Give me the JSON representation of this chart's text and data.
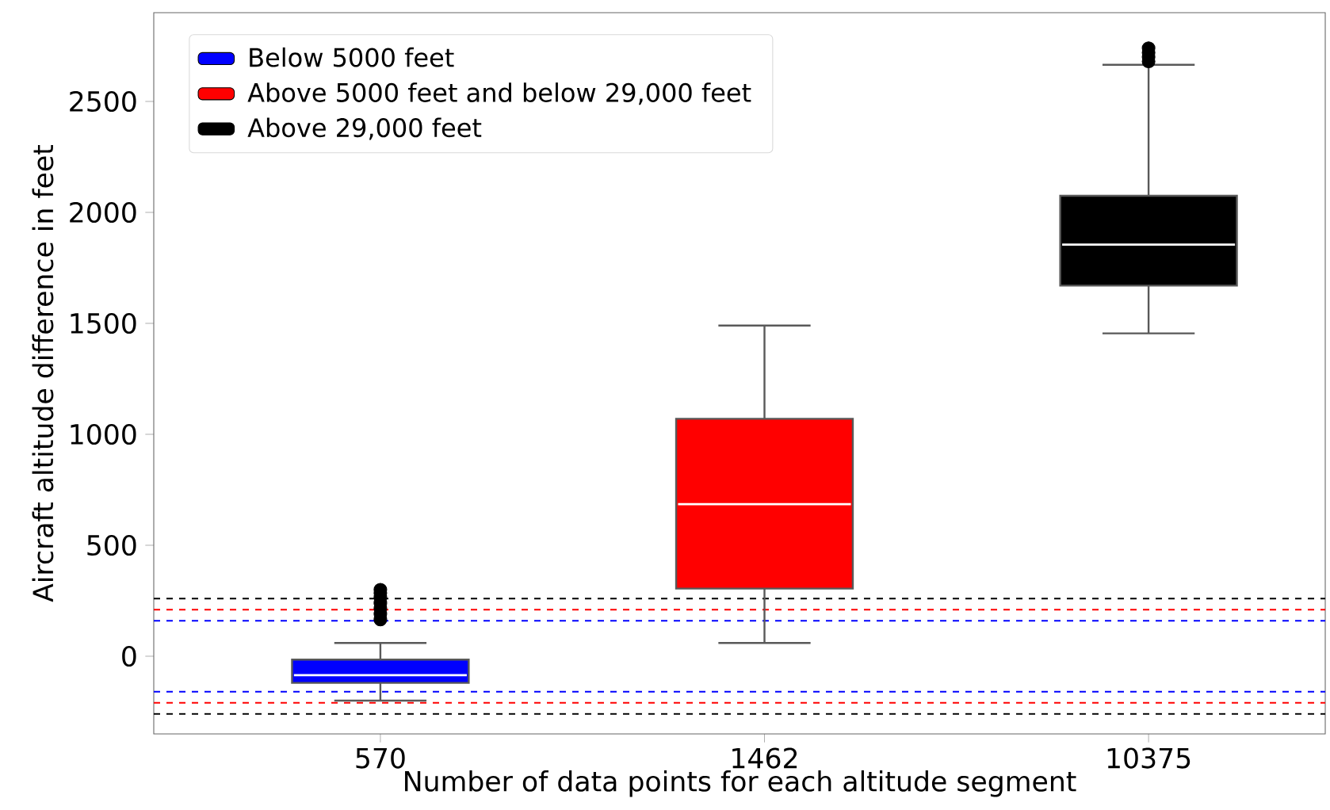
{
  "chart_data": {
    "type": "box",
    "categories": [
      "570",
      "1462",
      "10375"
    ],
    "xlabel": "Number of data points for each altitude segment",
    "ylabel": "Aircraft altitude difference in feet",
    "series": [
      {
        "name": "Below 5000 feet",
        "color": "#0000ff",
        "boxes": [
          {
            "low": -200,
            "q1": -120,
            "median": -85,
            "q3": -15,
            "high": 60,
            "outliers": [
              165,
              190,
              215,
              240,
              265,
              285,
              300
            ]
          },
          null,
          null
        ]
      },
      {
        "name": "Above 5000 feet and below 29,000 feet",
        "color": "#ff0000",
        "boxes": [
          null,
          {
            "low": 60,
            "q1": 305,
            "median": 685,
            "q3": 1070,
            "high": 1490
          },
          null
        ]
      },
      {
        "name": "Above 29,000 feet",
        "color": "#000000",
        "boxes": [
          null,
          null,
          {
            "low": 1455,
            "q1": 1670,
            "median": 1855,
            "q3": 2075,
            "high": 2665,
            "outliers": [
              2680,
              2700,
              2720,
              2740
            ]
          }
        ]
      }
    ],
    "ylim": [
      -350,
      2900
    ],
    "yticks": [
      0,
      500,
      1000,
      1500,
      2000,
      2500
    ],
    "ref_lines": [
      {
        "axis": "y",
        "value": 260,
        "color": "#000000",
        "line_style": "dashed"
      },
      {
        "axis": "y",
        "value": 210,
        "color": "#ff0000",
        "line_style": "dashed"
      },
      {
        "axis": "y",
        "value": 160,
        "color": "#0000ff",
        "line_style": "dashed"
      },
      {
        "axis": "y",
        "value": -160,
        "color": "#0000ff",
        "line_style": "dashed"
      },
      {
        "axis": "y",
        "value": -210,
        "color": "#ff0000",
        "line_style": "dashed"
      },
      {
        "axis": "y",
        "value": -260,
        "color": "#000000",
        "line_style": "dashed"
      }
    ],
    "legend": "top left",
    "grid": false
  }
}
